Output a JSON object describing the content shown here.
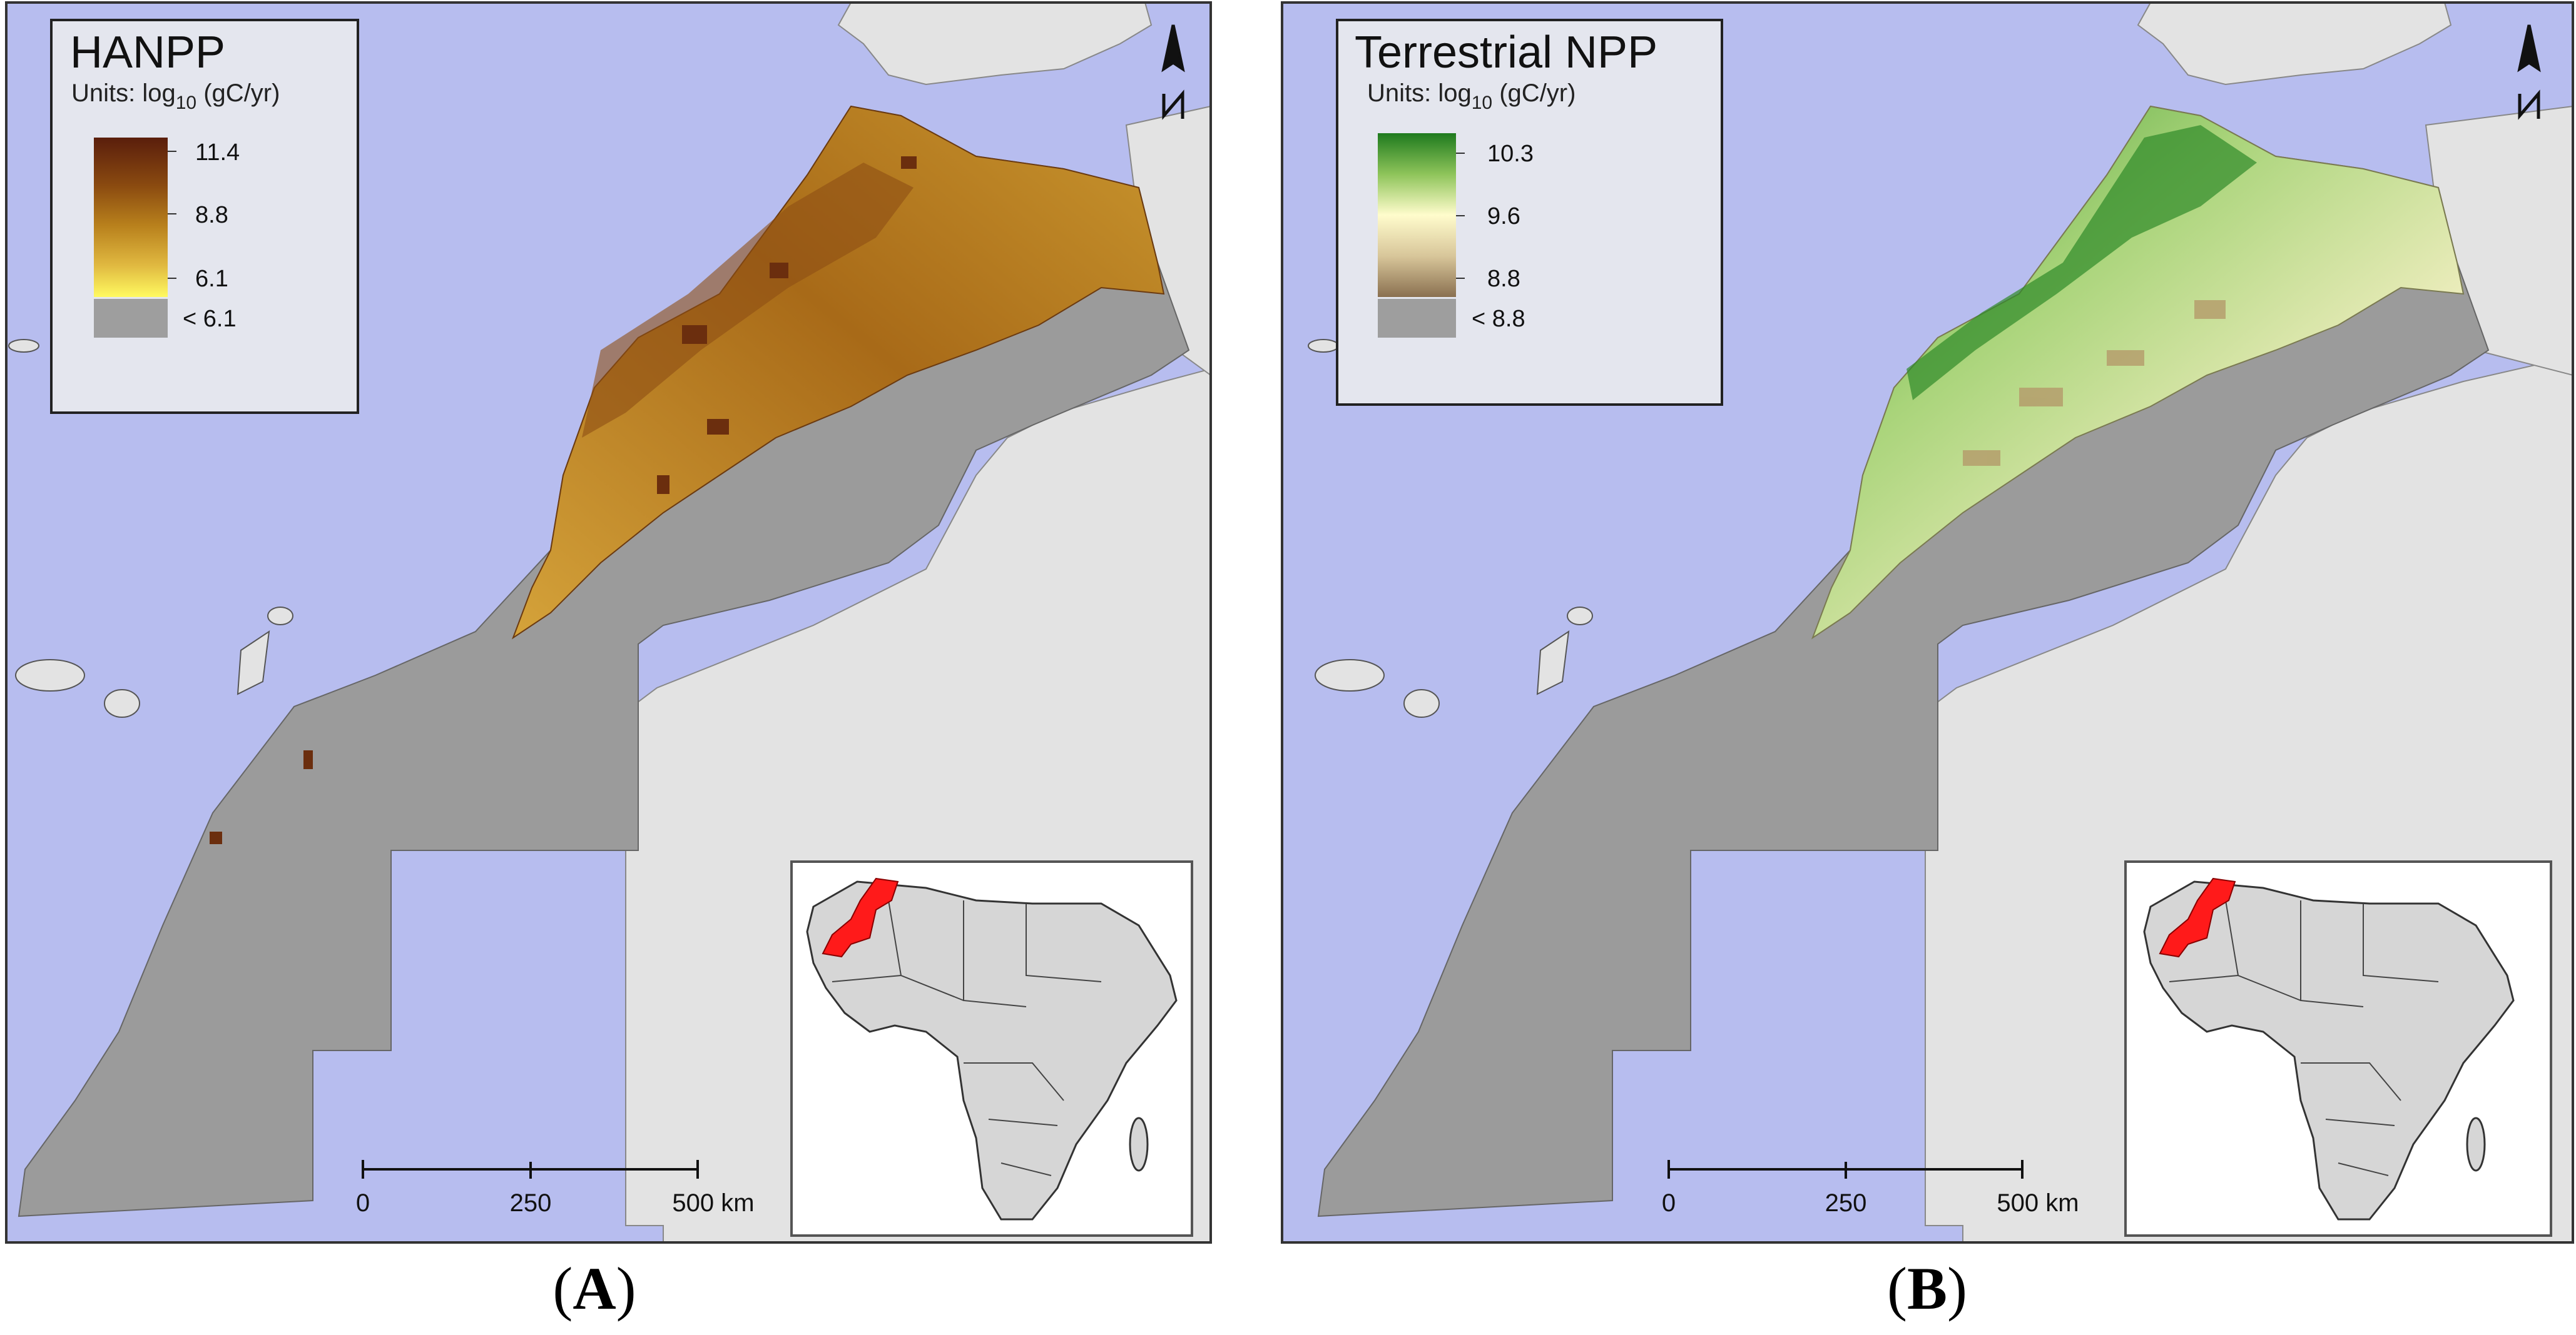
{
  "panels": [
    {
      "id": "A",
      "caption_letter": "A",
      "legend": {
        "title": "HANPP",
        "units_prefix": "Units: log",
        "units_sub": "10",
        "units_suffix": " (gC/yr)",
        "tick_high": "11.4",
        "tick_mid": "8.8",
        "tick_low": "6.1",
        "below_label": "< 6.1",
        "ramp_colors": [
          "#5a1e0c",
          "#8a4a10",
          "#b8801c",
          "#e0b840",
          "#fffa60"
        ],
        "below_color": "#9e9e9e"
      },
      "scale_bar": {
        "ticks": [
          "0",
          "250",
          "500 km"
        ]
      },
      "inset": {
        "highlight_color": "#ff1a1a"
      }
    },
    {
      "id": "B",
      "caption_letter": "B",
      "legend": {
        "title": "Terrestrial NPP",
        "units_prefix": "Units: log",
        "units_sub": "10",
        "units_suffix": " (gC/yr)",
        "tick_high": "10.3",
        "tick_mid": "9.6",
        "tick_low": "8.8",
        "below_label": "< 8.8",
        "ramp_colors": [
          "#1e7a1e",
          "#8ec45a",
          "#fffccc",
          "#d8c69a",
          "#8a7050"
        ],
        "below_color": "#9e9e9e"
      },
      "scale_bar": {
        "ticks": [
          "0",
          "250",
          "500 km"
        ]
      },
      "inset": {
        "highlight_color": "#ff1a1a"
      }
    }
  ],
  "colors": {
    "sea": "#b7bdef",
    "land": "#e3e3e3",
    "no_data": "#9b9b9b",
    "legend_bg": "#e4e6ee"
  }
}
